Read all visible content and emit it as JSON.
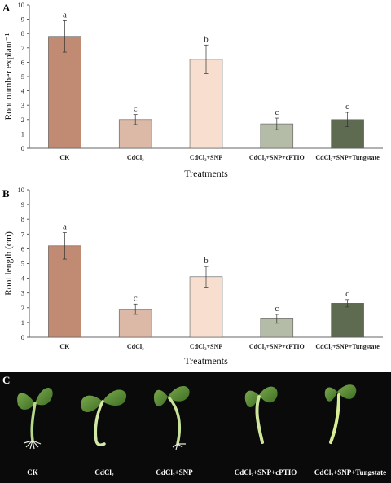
{
  "panels": [
    {
      "letter": "A"
    },
    {
      "letter": "B"
    },
    {
      "letter": "C"
    }
  ],
  "photo_labels": [
    "CK",
    "CdCl₂",
    "CdCl₂+SNP",
    "CdCl₂+SNP+cPTIO",
    "CdCl₂+SNP+Tungstate"
  ],
  "chart_data": [
    {
      "type": "bar",
      "title": "",
      "xlabel": "Treatments",
      "ylabel": "Root number explant⁻¹",
      "categories": [
        "CK",
        "CdCl₂",
        "CdCl₂+SNP",
        "CdCl₂+SNP+cPTIO",
        "CdCl₂+SNP+Tungstate"
      ],
      "values": [
        7.8,
        2.0,
        6.2,
        1.7,
        2.0
      ],
      "errors": [
        1.1,
        0.35,
        1.0,
        0.4,
        0.5
      ],
      "significance": [
        "a",
        "c",
        "b",
        "c",
        "c"
      ],
      "yticks": [
        0,
        1,
        2,
        3,
        4,
        5,
        6,
        7,
        8,
        9,
        10
      ],
      "ylim": [
        0,
        10
      ],
      "grid": false,
      "colors": [
        "#c08a73",
        "#dcb9a6",
        "#f7dece",
        "#b4bba7",
        "#5e6b51"
      ]
    },
    {
      "type": "bar",
      "title": "",
      "xlabel": "Treatments",
      "ylabel": "Root length (cm)",
      "categories": [
        "CK",
        "CdCl₂",
        "CdCl₂+SNP",
        "CdCl₂+SNP+cPTIO",
        "CdCl₂+SNP+Tungstate"
      ],
      "values": [
        6.2,
        1.9,
        4.1,
        1.25,
        2.3
      ],
      "errors": [
        0.9,
        0.35,
        0.7,
        0.3,
        0.25
      ],
      "significance": [
        "a",
        "c",
        "b",
        "c",
        "c"
      ],
      "yticks": [
        0,
        1,
        2,
        3,
        4,
        5,
        6,
        7,
        8,
        9,
        10
      ],
      "ylim": [
        0,
        10
      ],
      "grid": false,
      "colors": [
        "#c08a73",
        "#dcb9a6",
        "#f7dece",
        "#b4bba7",
        "#5e6b51"
      ]
    }
  ]
}
